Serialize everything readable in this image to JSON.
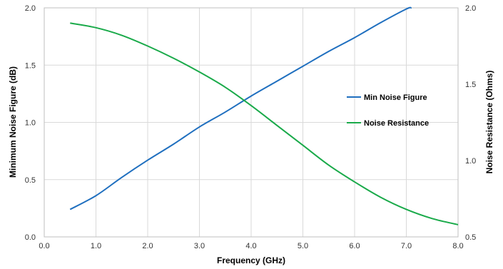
{
  "chart_data": {
    "type": "line",
    "xlabel": "Frequency (GHz)",
    "ylabel": "Minimum Noise Figure (dB)",
    "y2label": "Noise Resistance (Ohms)",
    "xlim": [
      0,
      8
    ],
    "ylim": [
      0,
      2
    ],
    "y2lim": [
      0.5,
      2
    ],
    "x_ticks": [
      "0.0",
      "1.0",
      "2.0",
      "3.0",
      "4.0",
      "5.0",
      "6.0",
      "7.0",
      "8.0"
    ],
    "y_ticks": [
      "0.0",
      "0.5",
      "1.0",
      "1.5",
      "2.0"
    ],
    "y2_ticks": [
      "0.5",
      "1.0",
      "1.5",
      "2.0"
    ],
    "grid": true,
    "legend_position": "right",
    "series": [
      {
        "name": "Min Noise Figure",
        "axis": "left",
        "color": "#1f6fbf",
        "x": [
          0.5,
          1.0,
          1.5,
          2.0,
          2.5,
          3.0,
          3.5,
          4.0,
          4.5,
          5.0,
          5.5,
          6.0,
          6.5,
          7.0,
          7.1
        ],
        "y": [
          0.24,
          0.36,
          0.52,
          0.67,
          0.81,
          0.96,
          1.09,
          1.23,
          1.36,
          1.49,
          1.62,
          1.74,
          1.87,
          1.99,
          2.0
        ]
      },
      {
        "name": "Noise Resistance",
        "axis": "right",
        "color": "#1aaa4a",
        "x": [
          0.5,
          1.0,
          1.5,
          2.0,
          2.5,
          3.0,
          3.5,
          4.0,
          4.5,
          5.0,
          5.5,
          6.0,
          6.5,
          7.0,
          7.5,
          8.0
        ],
        "y": [
          1.9,
          1.87,
          1.82,
          1.75,
          1.67,
          1.58,
          1.48,
          1.36,
          1.23,
          1.1,
          0.97,
          0.86,
          0.76,
          0.68,
          0.62,
          0.58
        ]
      }
    ]
  }
}
